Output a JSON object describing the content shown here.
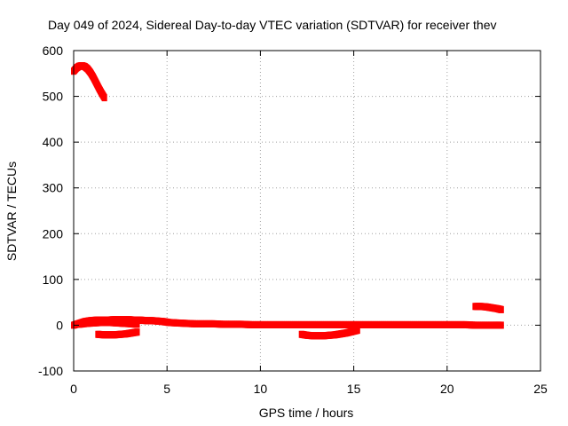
{
  "chart_data": {
    "type": "scatter",
    "title": "Day 049 of 2024, Sidereal Day-to-day VTEC variation (SDTVAR) for receiver thev",
    "xlabel": "GPS time / hours",
    "ylabel": "SDTVAR / TECUs",
    "xlim": [
      0,
      25
    ],
    "ylim": [
      -100,
      600
    ],
    "xticks": [
      "0",
      "5",
      "10",
      "15",
      "20",
      "25"
    ],
    "yticks": [
      "-100",
      "0",
      "100",
      "200",
      "300",
      "400",
      "500",
      "600"
    ],
    "grid": true,
    "legend": "none",
    "marker_color": "#ff0000",
    "series": [
      {
        "x": [
          0.0,
          0.15,
          0.3,
          0.45,
          0.6,
          0.75,
          0.9,
          1.05,
          1.2,
          1.35,
          1.5,
          1.65
        ],
        "y": [
          555,
          562,
          566,
          567,
          565,
          560,
          552,
          542,
          530,
          518,
          507,
          497
        ]
      },
      {
        "x": [
          0.0,
          0.3,
          0.6,
          0.9,
          1.2,
          1.5,
          1.8,
          2.1,
          2.4,
          2.7,
          3.0,
          3.3,
          3.6,
          3.9,
          4.2,
          4.5,
          4.8,
          5.1,
          5.5,
          6.0,
          6.5,
          7.0,
          7.5,
          8.0,
          8.5,
          9.0,
          9.5,
          10.0,
          10.5,
          11.0,
          11.5,
          12.0,
          12.5,
          13.0,
          13.5,
          14.0,
          14.5,
          15.0,
          15.5,
          16.0,
          16.5,
          17.0,
          17.5,
          18.0,
          18.5,
          19.0,
          19.5,
          20.0,
          20.5,
          21.0,
          21.5,
          22.0,
          22.5,
          22.9
        ],
        "y": [
          0,
          4,
          8,
          10,
          11,
          11,
          11,
          12,
          12,
          12,
          12,
          11,
          11,
          10,
          10,
          9,
          8,
          6,
          5,
          4,
          3,
          3,
          3,
          2,
          2,
          2,
          1,
          1,
          1,
          1,
          1,
          1,
          1,
          1,
          1,
          1,
          1,
          1,
          1,
          1,
          1,
          1,
          1,
          1,
          1,
          1,
          1,
          1,
          1,
          1,
          0,
          0,
          0,
          0
        ]
      },
      {
        "x": [
          0.3,
          0.7,
          1.1,
          1.5,
          1.9,
          2.3,
          2.7,
          3.1,
          3.4
        ],
        "y": [
          2,
          4,
          5,
          6,
          6,
          5,
          4,
          3,
          2
        ]
      },
      {
        "x": [
          1.3,
          1.6,
          1.9,
          2.2,
          2.5,
          2.8,
          3.1,
          3.4
        ],
        "y": [
          -20,
          -21,
          -21,
          -21,
          -20,
          -19,
          -17,
          -15
        ]
      },
      {
        "x": [
          12.2,
          12.5,
          12.8,
          13.1,
          13.4,
          13.7,
          14.0,
          14.3,
          14.6,
          14.9,
          15.2
        ],
        "y": [
          -20,
          -22,
          -23,
          -23,
          -23,
          -22,
          -21,
          -19,
          -17,
          -14,
          -11
        ]
      },
      {
        "x": [
          21.5,
          21.8,
          22.1,
          22.4,
          22.7,
          22.9
        ],
        "y": [
          41,
          41,
          40,
          38,
          36,
          34
        ]
      }
    ]
  }
}
